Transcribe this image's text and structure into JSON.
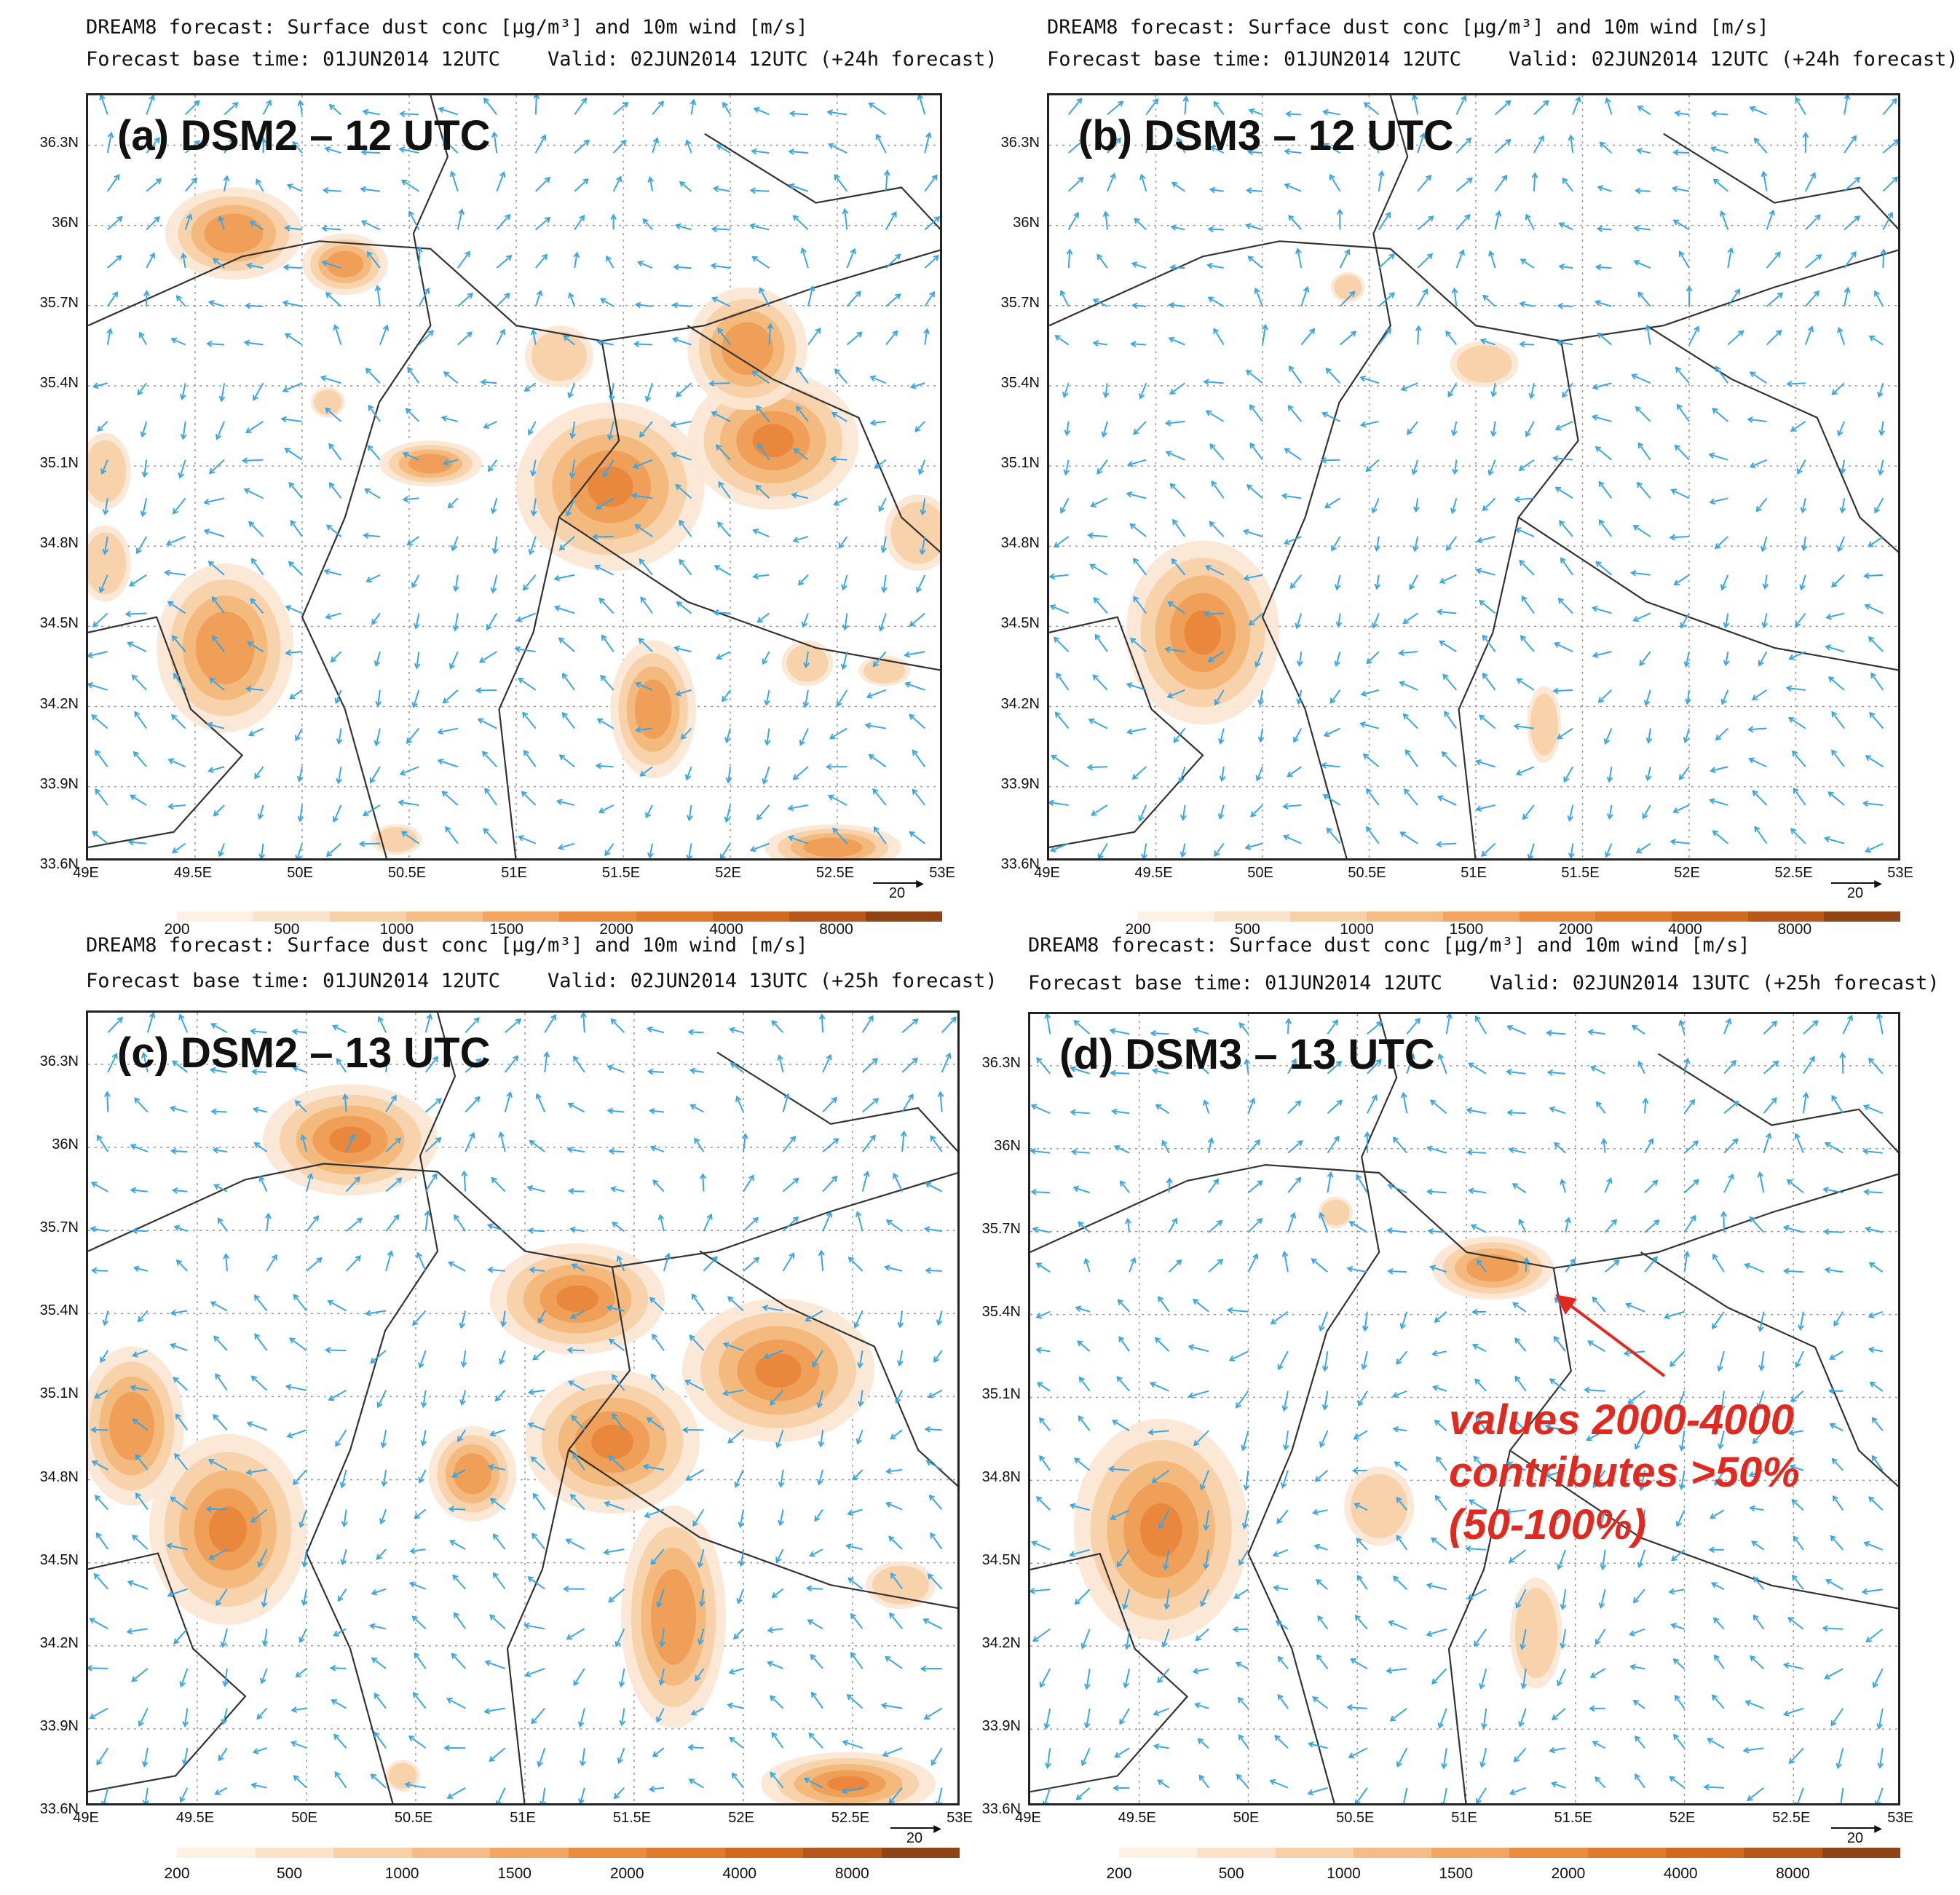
{
  "colors": {
    "wind_arrow": "#3aa6e4",
    "border": "#333333",
    "scale": [
      "#fbe6d2",
      "#f7cfa6",
      "#f3b679",
      "#ee9c54",
      "#e8843a",
      "#d66a22",
      "#a94f1a"
    ],
    "annotation": "#e0291f"
  },
  "panels": [
    {
      "id": "a",
      "header_line1": "DREAM8 forecast: Surface dust conc [μg/m³] and 10m wind [m/s]",
      "header_line2": "Forecast base time: 01JUN2014 12UTC    Valid: 02JUN2014 12UTC (+24h forecast)",
      "label": "(a) DSM2 – 12 UTC"
    },
    {
      "id": "b",
      "header_line1": "DREAM8 forecast: Surface dust conc [μg/m³] and 10m wind [m/s]",
      "header_line2": "Forecast base time: 01JUN2014 12UTC    Valid: 02JUN2014 12UTC (+24h forecast)",
      "label": "(b) DSM3 – 12 UTC"
    },
    {
      "id": "c",
      "header_line1": "DREAM8 forecast: Surface dust conc [μg/m³] and 10m wind [m/s]",
      "header_line2": "Forecast base time: 01JUN2014 12UTC    Valid: 02JUN2014 13UTC (+25h forecast)",
      "label": "(c) DSM2 – 13 UTC"
    },
    {
      "id": "d",
      "header_line1": "DREAM8 forecast: Surface dust conc [μg/m³] and 10m wind [m/s]",
      "header_line2": "Forecast base time: 01JUN2014 12UTC    Valid: 02JUN2014 13UTC (+25h forecast)",
      "label": "(d) DSM3 – 13 UTC"
    }
  ],
  "lat_labels": [
    "36.3N",
    "36N",
    "35.7N",
    "35.4N",
    "35.1N",
    "34.8N",
    "34.5N",
    "34.2N",
    "33.9N",
    "33.6N"
  ],
  "lon_labels": [
    "49E",
    "49.5E",
    "50E",
    "50.5E",
    "51E",
    "51.5E",
    "52E",
    "52.5E",
    "53E"
  ],
  "scale_labels": [
    "200",
    "500",
    "1000",
    "1500",
    "2000",
    "4000",
    "8000"
  ],
  "reference_vector": "20",
  "annotation": {
    "line1": "values 2000-4000",
    "line2": "contributes >50%",
    "line3": "(50-100%)"
  }
}
